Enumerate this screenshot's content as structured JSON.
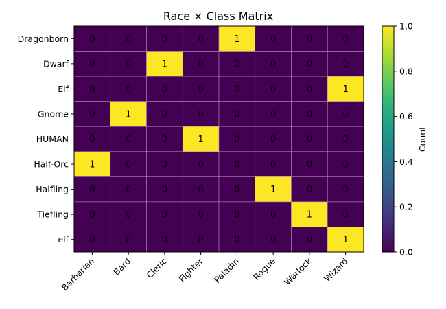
{
  "chart_data": {
    "type": "heatmap",
    "title": "Race × Class Matrix",
    "xlabel": "",
    "ylabel": "",
    "x_categories": [
      "Barbarian",
      "Bard",
      "Cleric",
      "Fighter",
      "Paladin",
      "Rogue",
      "Warlock",
      "Wizard"
    ],
    "y_categories": [
      "Dragonborn",
      "Dwarf",
      "Elf",
      "Gnome",
      "HUMAN",
      "Half-Orc",
      "Halfling",
      "Tiefling",
      "elf"
    ],
    "values": [
      [
        0,
        0,
        0,
        0,
        1,
        0,
        0,
        0
      ],
      [
        0,
        0,
        1,
        0,
        0,
        0,
        0,
        0
      ],
      [
        0,
        0,
        0,
        0,
        0,
        0,
        0,
        1
      ],
      [
        0,
        1,
        0,
        0,
        0,
        0,
        0,
        0
      ],
      [
        0,
        0,
        0,
        1,
        0,
        0,
        0,
        0
      ],
      [
        1,
        0,
        0,
        0,
        0,
        0,
        0,
        0
      ],
      [
        0,
        0,
        0,
        0,
        0,
        1,
        0,
        0
      ],
      [
        0,
        0,
        0,
        0,
        0,
        0,
        1,
        0
      ],
      [
        0,
        0,
        0,
        0,
        0,
        0,
        0,
        1
      ]
    ],
    "colorbar": {
      "label": "Count",
      "range": [
        0,
        1
      ],
      "ticks": [
        "0.0",
        "0.2",
        "0.4",
        "0.6",
        "0.8",
        "1.0"
      ],
      "colormap": "viridis"
    },
    "colors": {
      "low": "#440154",
      "high": "#fde725",
      "grid": "#a48fb0"
    },
    "grid": true
  }
}
